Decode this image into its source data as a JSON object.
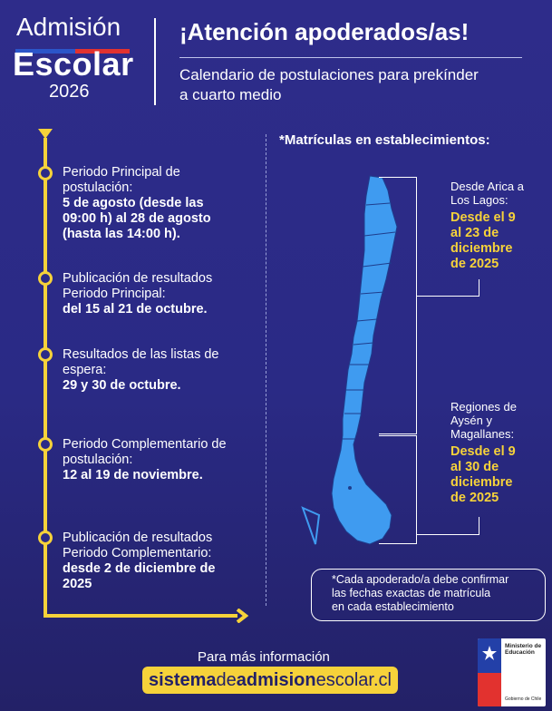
{
  "logo": {
    "line1": "Admisión",
    "line2": "Escolar",
    "year": "2026"
  },
  "header": {
    "headline": "¡Atención apoderados/as!",
    "subtitle_line1": "Calendario de postulaciones para prekínder",
    "subtitle_line2": "a cuarto medio"
  },
  "timeline": [
    {
      "label_line1": "Periodo Principal de",
      "label_line2": "postulación:",
      "bold_lines": [
        "5 de agosto (desde las",
        "09:00 h) al 28 de agosto",
        "(hasta las 14:00 h)."
      ]
    },
    {
      "label_line1": "Publicación de resultados",
      "label_line2": "Periodo Principal:",
      "bold_lines": [
        "del 15 al 21 de octubre."
      ]
    },
    {
      "label_line1": "Resultados de las listas de",
      "label_line2": "espera:",
      "bold_lines": [
        "29 y 30 de octubre."
      ]
    },
    {
      "label_line1": "Periodo Complementario de",
      "label_line2": "postulación:",
      "bold_lines": [
        "12 al 19 de noviembre."
      ]
    },
    {
      "label_line1": "Publicación de resultados",
      "label_line2": "Periodo Complementario:",
      "bold_lines": [
        "desde 2 de diciembre de",
        "2025"
      ]
    }
  ],
  "matriculas": {
    "title": "*Matrículas en establecimientos:",
    "north": {
      "region_line1": "Desde Arica a",
      "region_line2": "Los Lagos:",
      "dates": [
        "Desde el 9",
        "al 23 de",
        "diciembre",
        "de 2025"
      ]
    },
    "south": {
      "region_line1": "Regiones de",
      "region_line2": "Aysén y",
      "region_line3": "Magallanes:",
      "dates": [
        "Desde el 9",
        "al 30 de",
        "diciembre",
        "de 2025"
      ]
    }
  },
  "note": {
    "line1": "*Cada apoderado/a debe confirmar",
    "line2": "las fechas exactas de matrícula",
    "line3": "en cada establecimiento"
  },
  "footer": {
    "info": "Para más información",
    "url_part1": "sistema",
    "url_part2": "de",
    "url_part3": "admision",
    "url_part4": "escolar.cl"
  },
  "ministry": {
    "line1": "Ministerio de",
    "line2": "Educación",
    "line3": "Gobierno de Chile"
  },
  "colors": {
    "background": "#2a2a85",
    "accent_yellow": "#f6d23a",
    "map_blue": "#3f9bf0"
  }
}
